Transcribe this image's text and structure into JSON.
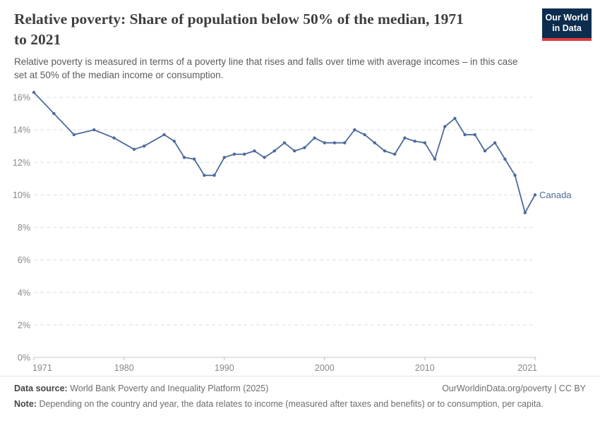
{
  "header": {
    "title": "Relative poverty: Share of population below 50% of the median, 1971\nto 2021",
    "subtitle": "Relative poverty is measured in terms of a poverty line that rises and falls over time with average incomes – in this case\nset at 50% of the median income or consumption.",
    "logo": {
      "line1": "Our World",
      "line2": "in Data",
      "bg_color": "#0c2d4e",
      "stripe_color": "#dc3c3c"
    }
  },
  "chart_data": {
    "type": "line",
    "title": "Relative poverty: Share of population below 50% of the median, 1971 to 2021",
    "x": [
      1971,
      1973,
      1975,
      1977,
      1979,
      1981,
      1982,
      1984,
      1985,
      1986,
      1987,
      1988,
      1989,
      1990,
      1991,
      1992,
      1993,
      1994,
      1995,
      1996,
      1997,
      1998,
      1999,
      2000,
      2001,
      2002,
      2003,
      2004,
      2005,
      2006,
      2007,
      2008,
      2009,
      2010,
      2011,
      2012,
      2013,
      2014,
      2015,
      2016,
      2017,
      2018,
      2019,
      2020,
      2021
    ],
    "series": [
      {
        "name": "Canada",
        "color": "#4c6a9c",
        "values": [
          16.3,
          15.0,
          13.7,
          14.0,
          13.5,
          12.8,
          13.0,
          13.7,
          13.3,
          12.3,
          12.2,
          11.2,
          11.2,
          12.3,
          12.5,
          12.5,
          12.7,
          12.3,
          12.7,
          13.2,
          12.7,
          12.9,
          13.5,
          13.2,
          13.2,
          13.2,
          14.0,
          13.7,
          13.2,
          12.7,
          12.5,
          13.5,
          13.3,
          13.2,
          12.2,
          14.2,
          14.7,
          13.7,
          13.7,
          12.7,
          13.2,
          12.2,
          11.2,
          8.9,
          10.0
        ]
      }
    ],
    "xlim": [
      1971,
      2021
    ],
    "ylim": [
      0,
      16
    ],
    "yticks": [
      0,
      2,
      4,
      6,
      8,
      10,
      12,
      14,
      16
    ],
    "ytick_suffix": "%",
    "xticks": [
      1971,
      1980,
      1990,
      2000,
      2010,
      2021
    ],
    "grid": "horizontal-dashed",
    "legend": "line-end-label"
  },
  "footer": {
    "datasource_label": "Data source:",
    "datasource": "World Bank Poverty and Inequality Platform (2025)",
    "link": "OurWorldinData.org/poverty | CC BY",
    "note_label": "Note:",
    "note": "Depending on the country and year, the data relates to income (measured after taxes and benefits) or to consumption, per capita."
  }
}
